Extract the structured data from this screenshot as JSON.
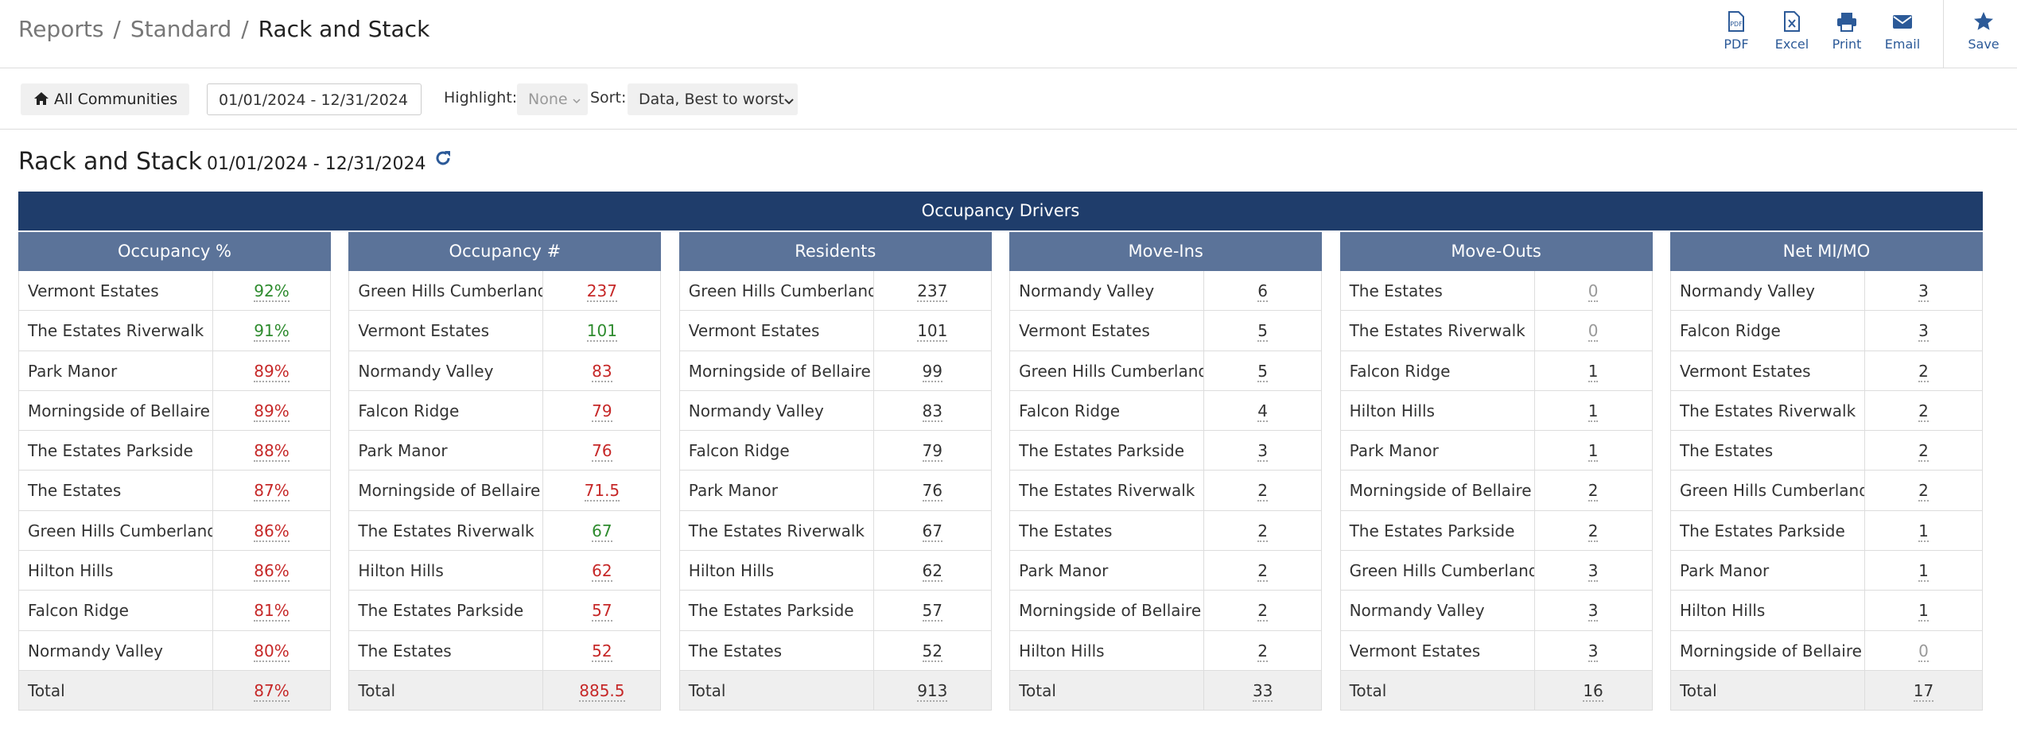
{
  "header": {
    "breadcrumb": [
      "Reports",
      "Standard",
      "Rack and Stack"
    ],
    "separator": "/",
    "actions": [
      "PDF",
      "Excel",
      "Print",
      "Email",
      "Save"
    ]
  },
  "toolbar": {
    "communities": "All Communities",
    "date_range": "01/01/2024 - 12/31/2024",
    "highlight_label": "Highlight:",
    "highlight_value": "None",
    "sort_label": "Sort:",
    "sort_value": "Data, Best to worst"
  },
  "report": {
    "title": "Rack and Stack",
    "date_range": "01/01/2024 - 12/31/2024"
  },
  "table": {
    "title": "Occupancy Drivers",
    "groups": [
      {
        "heading": "Occupancy %",
        "rows": [
          {
            "name": "Vermont Estates",
            "value": "92%",
            "color": "#2e8b2e"
          },
          {
            "name": "The Estates Riverwalk",
            "value": "91%",
            "color": "#2e8b2e"
          },
          {
            "name": "Park Manor",
            "value": "89%",
            "color": "#c62828"
          },
          {
            "name": "Morningside of Bellaire",
            "value": "89%",
            "color": "#c62828"
          },
          {
            "name": "The Estates Parkside",
            "value": "88%",
            "color": "#c62828"
          },
          {
            "name": "The Estates",
            "value": "87%",
            "color": "#c62828"
          },
          {
            "name": "Green Hills Cumberland",
            "value": "86%",
            "color": "#c62828"
          },
          {
            "name": "Hilton Hills",
            "value": "86%",
            "color": "#c62828"
          },
          {
            "name": "Falcon Ridge",
            "value": "81%",
            "color": "#c62828"
          },
          {
            "name": "Normandy Valley",
            "value": "80%",
            "color": "#c62828"
          }
        ],
        "total": {
          "name": "Total",
          "value": "87%",
          "color": "#c62828"
        }
      },
      {
        "heading": "Occupancy #",
        "rows": [
          {
            "name": "Green Hills Cumberland",
            "value": "237",
            "color": "#c62828"
          },
          {
            "name": "Vermont Estates",
            "value": "101",
            "color": "#2e8b2e"
          },
          {
            "name": "Normandy Valley",
            "value": "83",
            "color": "#c62828"
          },
          {
            "name": "Falcon Ridge",
            "value": "79",
            "color": "#c62828"
          },
          {
            "name": "Park Manor",
            "value": "76",
            "color": "#c62828"
          },
          {
            "name": "Morningside of Bellaire",
            "value": "71.5",
            "color": "#c62828"
          },
          {
            "name": "The Estates Riverwalk",
            "value": "67",
            "color": "#2e8b2e"
          },
          {
            "name": "Hilton Hills",
            "value": "62",
            "color": "#c62828"
          },
          {
            "name": "The Estates Parkside",
            "value": "57",
            "color": "#c62828"
          },
          {
            "name": "The Estates",
            "value": "52",
            "color": "#c62828"
          }
        ],
        "total": {
          "name": "Total",
          "value": "885.5",
          "color": "#c62828"
        }
      },
      {
        "heading": "Residents",
        "rows": [
          {
            "name": "Green Hills Cumberland",
            "value": "237",
            "color": "#333333"
          },
          {
            "name": "Vermont Estates",
            "value": "101",
            "color": "#333333"
          },
          {
            "name": "Morningside of Bellaire",
            "value": "99",
            "color": "#333333"
          },
          {
            "name": "Normandy Valley",
            "value": "83",
            "color": "#333333"
          },
          {
            "name": "Falcon Ridge",
            "value": "79",
            "color": "#333333"
          },
          {
            "name": "Park Manor",
            "value": "76",
            "color": "#333333"
          },
          {
            "name": "The Estates Riverwalk",
            "value": "67",
            "color": "#333333"
          },
          {
            "name": "Hilton Hills",
            "value": "62",
            "color": "#333333"
          },
          {
            "name": "The Estates Parkside",
            "value": "57",
            "color": "#333333"
          },
          {
            "name": "The Estates",
            "value": "52",
            "color": "#333333"
          }
        ],
        "total": {
          "name": "Total",
          "value": "913",
          "color": "#333333"
        }
      },
      {
        "heading": "Move-Ins",
        "rows": [
          {
            "name": "Normandy Valley",
            "value": "6",
            "color": "#333333"
          },
          {
            "name": "Vermont Estates",
            "value": "5",
            "color": "#333333"
          },
          {
            "name": "Green Hills Cumberland",
            "value": "5",
            "color": "#333333"
          },
          {
            "name": "Falcon Ridge",
            "value": "4",
            "color": "#333333"
          },
          {
            "name": "The Estates Parkside",
            "value": "3",
            "color": "#333333"
          },
          {
            "name": "The Estates Riverwalk",
            "value": "2",
            "color": "#333333"
          },
          {
            "name": "The Estates",
            "value": "2",
            "color": "#333333"
          },
          {
            "name": "Park Manor",
            "value": "2",
            "color": "#333333"
          },
          {
            "name": "Morningside of Bellaire",
            "value": "2",
            "color": "#333333"
          },
          {
            "name": "Hilton Hills",
            "value": "2",
            "color": "#333333"
          }
        ],
        "total": {
          "name": "Total",
          "value": "33",
          "color": "#333333"
        }
      },
      {
        "heading": "Move-Outs",
        "rows": [
          {
            "name": "The Estates",
            "value": "0",
            "color": "#999999"
          },
          {
            "name": "The Estates Riverwalk",
            "value": "0",
            "color": "#999999"
          },
          {
            "name": "Falcon Ridge",
            "value": "1",
            "color": "#333333"
          },
          {
            "name": "Hilton Hills",
            "value": "1",
            "color": "#333333"
          },
          {
            "name": "Park Manor",
            "value": "1",
            "color": "#333333"
          },
          {
            "name": "Morningside of Bellaire",
            "value": "2",
            "color": "#333333"
          },
          {
            "name": "The Estates Parkside",
            "value": "2",
            "color": "#333333"
          },
          {
            "name": "Green Hills Cumberland",
            "value": "3",
            "color": "#333333"
          },
          {
            "name": "Normandy Valley",
            "value": "3",
            "color": "#333333"
          },
          {
            "name": "Vermont Estates",
            "value": "3",
            "color": "#333333"
          }
        ],
        "total": {
          "name": "Total",
          "value": "16",
          "color": "#333333"
        }
      },
      {
        "heading": "Net MI/MO",
        "rows": [
          {
            "name": "Normandy Valley",
            "value": "3",
            "color": "#333333"
          },
          {
            "name": "Falcon Ridge",
            "value": "3",
            "color": "#333333"
          },
          {
            "name": "Vermont Estates",
            "value": "2",
            "color": "#333333"
          },
          {
            "name": "The Estates Riverwalk",
            "value": "2",
            "color": "#333333"
          },
          {
            "name": "The Estates",
            "value": "2",
            "color": "#333333"
          },
          {
            "name": "Green Hills Cumberland",
            "value": "2",
            "color": "#333333"
          },
          {
            "name": "The Estates Parkside",
            "value": "1",
            "color": "#333333"
          },
          {
            "name": "Park Manor",
            "value": "1",
            "color": "#333333"
          },
          {
            "name": "Hilton Hills",
            "value": "1",
            "color": "#333333"
          },
          {
            "name": "Morningside of Bellaire",
            "value": "0",
            "color": "#999999"
          }
        ],
        "total": {
          "name": "Total",
          "value": "17",
          "color": "#333333"
        }
      }
    ]
  }
}
